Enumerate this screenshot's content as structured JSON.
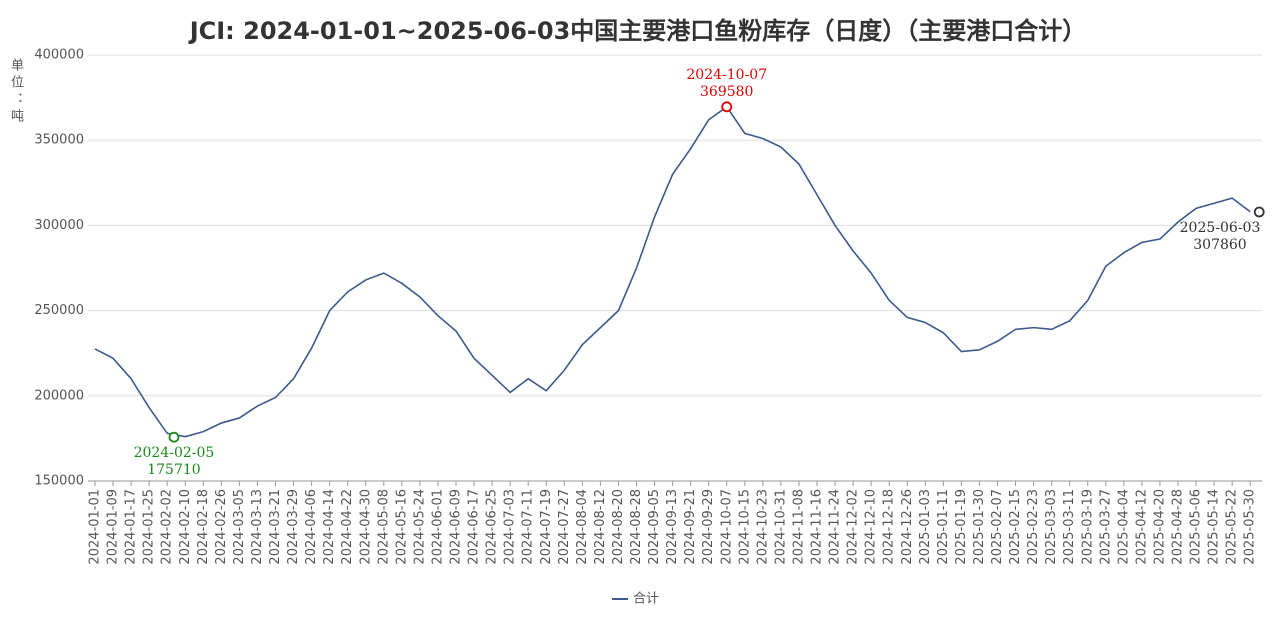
{
  "chart_data": {
    "type": "line",
    "title": "JCI: 2024-01-01~2025-06-03中国主要港口鱼粉库存（日度）（主要港口合计）",
    "y_label": "单位：吨",
    "categories": [
      "2024-01-01",
      "2024-01-09",
      "2024-01-17",
      "2024-01-25",
      "2024-02-02",
      "2024-02-10",
      "2024-02-18",
      "2024-02-26",
      "2024-03-05",
      "2024-03-13",
      "2024-03-21",
      "2024-03-29",
      "2024-04-06",
      "2024-04-14",
      "2024-04-22",
      "2024-04-30",
      "2024-05-08",
      "2024-05-16",
      "2024-05-24",
      "2024-06-01",
      "2024-06-09",
      "2024-06-17",
      "2024-06-25",
      "2024-07-03",
      "2024-07-11",
      "2024-07-19",
      "2024-07-27",
      "2024-08-04",
      "2024-08-12",
      "2024-08-20",
      "2024-08-28",
      "2024-09-05",
      "2024-09-13",
      "2024-09-21",
      "2024-09-29",
      "2024-10-07",
      "2024-10-15",
      "2024-10-23",
      "2024-10-31",
      "2024-11-08",
      "2024-11-16",
      "2024-11-24",
      "2024-12-02",
      "2024-12-10",
      "2024-12-18",
      "2024-12-26",
      "2025-01-03",
      "2025-01-11",
      "2025-01-19",
      "2025-01-30",
      "2025-02-07",
      "2025-02-15",
      "2025-02-23",
      "2025-03-03",
      "2025-03-11",
      "2025-03-19",
      "2025-03-27",
      "2025-04-04",
      "2025-04-12",
      "2025-04-20",
      "2025-04-28",
      "2025-05-06",
      "2025-05-14",
      "2025-05-22",
      "2025-05-30"
    ],
    "series": [
      {
        "name": "合计",
        "color": "#3b5b8c",
        "values": [
          227500,
          222000,
          210000,
          193000,
          178000,
          176000,
          179000,
          184000,
          187000,
          194000,
          199000,
          210000,
          228000,
          250000,
          261000,
          268000,
          272000,
          266000,
          258000,
          247000,
          238000,
          222000,
          212000,
          202000,
          210000,
          203000,
          215000,
          230000,
          240000,
          250000,
          275000,
          305000,
          330000,
          345000,
          362000,
          369580,
          354000,
          351000,
          346000,
          336000,
          318000,
          300000,
          285000,
          272000,
          256000,
          246000,
          243000,
          237000,
          226000,
          227000,
          232000,
          239000,
          240000,
          239000,
          244000,
          256000,
          276000,
          284000,
          290000,
          292000,
          302000,
          310000,
          313000,
          316000,
          308000
        ]
      }
    ],
    "annotations": [
      {
        "date": "2024-02-05",
        "value": 175710,
        "color": "#1a8a1a"
      },
      {
        "date": "2024-10-07",
        "value": 369580,
        "color": "#e00000"
      },
      {
        "date": "2025-06-03",
        "value": 307860,
        "color": "#333333"
      }
    ],
    "ylim": [
      150000,
      400000
    ],
    "yticks": [
      150000,
      200000,
      250000,
      300000,
      350000,
      400000
    ],
    "grid": true
  }
}
